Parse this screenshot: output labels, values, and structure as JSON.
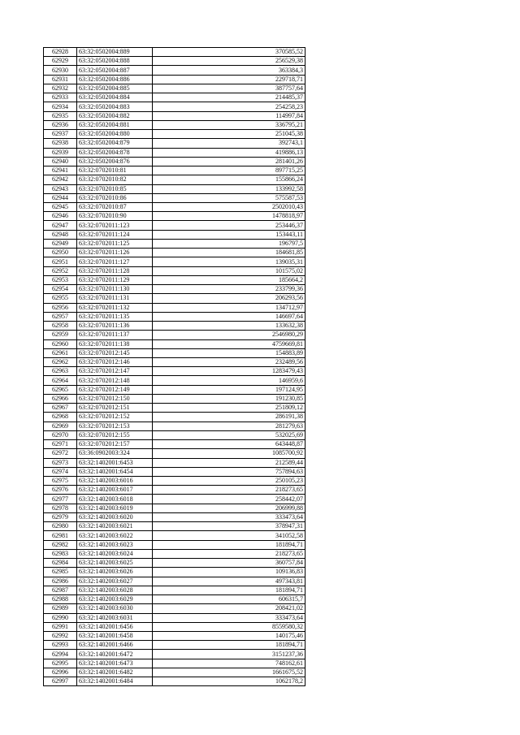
{
  "table": {
    "rows": [
      [
        "62928",
        "63:32:0502004:889",
        "370585,52"
      ],
      [
        "62929",
        "63:32:0502004:888",
        "256529,38"
      ],
      [
        "62930",
        "63:32:0502004:887",
        "363384,3"
      ],
      [
        "62931",
        "63:32:0502004:886",
        "229718,71"
      ],
      [
        "62932",
        "63:32:0502004:885",
        "387757,64"
      ],
      [
        "62933",
        "63:32:0502004:884",
        "214485,37"
      ],
      [
        "62934",
        "63:32:0502004:883",
        "254258,23"
      ],
      [
        "62935",
        "63:32:0502004:882",
        "114997,84"
      ],
      [
        "62936",
        "63:32:0502004:881",
        "336795,21"
      ],
      [
        "62937",
        "63:32:0502004:880",
        "251045,38"
      ],
      [
        "62938",
        "63:32:0502004:879",
        "392743,1"
      ],
      [
        "62939",
        "63:32:0502004:878",
        "419886,13"
      ],
      [
        "62940",
        "63:32:0502004:876",
        "281401,26"
      ],
      [
        "62941",
        "63:32:0702010:81",
        "897715,25"
      ],
      [
        "62942",
        "63:32:0702010:82",
        "155866,24"
      ],
      [
        "62943",
        "63:32:0702010:85",
        "133992,58"
      ],
      [
        "62944",
        "63:32:0702010:86",
        "575587,53"
      ],
      [
        "62945",
        "63:32:0702010:87",
        "2502010,43"
      ],
      [
        "62946",
        "63:32:0702010:90",
        "1478818,97"
      ],
      [
        "62947",
        "63:32:0702011:123",
        "253446,37"
      ],
      [
        "62948",
        "63:32:0702011:124",
        "153443,11"
      ],
      [
        "62949",
        "63:32:0702011:125",
        "196797,5"
      ],
      [
        "62950",
        "63:32:0702011:126",
        "184681,85"
      ],
      [
        "62951",
        "63:32:0702011:127",
        "139035,31"
      ],
      [
        "62952",
        "63:32:0702011:128",
        "101575,02"
      ],
      [
        "62953",
        "63:32:0702011:129",
        "185664,2"
      ],
      [
        "62954",
        "63:32:0702011:130",
        "233799,36"
      ],
      [
        "62955",
        "63:32:0702011:131",
        "206293,56"
      ],
      [
        "62956",
        "63:32:0702011:132",
        "134712,97"
      ],
      [
        "62957",
        "63:32:0702011:135",
        "146697,64"
      ],
      [
        "62958",
        "63:32:0702011:136",
        "133632,38"
      ],
      [
        "62959",
        "63:32:0702011:137",
        "2546980,29"
      ],
      [
        "62960",
        "63:32:0702011:138",
        "4759669,81"
      ],
      [
        "62961",
        "63:32:0702012:145",
        "154883,89"
      ],
      [
        "62962",
        "63:32:0702012:146",
        "232489,56"
      ],
      [
        "62963",
        "63:32:0702012:147",
        "1283479,43"
      ],
      [
        "62964",
        "63:32:0702012:148",
        "146959,6"
      ],
      [
        "62965",
        "63:32:0702012:149",
        "197124,95"
      ],
      [
        "62966",
        "63:32:0702012:150",
        "191230,85"
      ],
      [
        "62967",
        "63:32:0702012:151",
        "251809,12"
      ],
      [
        "62968",
        "63:32:0702012:152",
        "286191,38"
      ],
      [
        "62969",
        "63:32:0702012:153",
        "281279,63"
      ],
      [
        "62970",
        "63:32:0702012:155",
        "532025,69"
      ],
      [
        "62971",
        "63:32:0702012:157",
        "643448,87"
      ],
      [
        "62972",
        "63:36:0902003:324",
        "1085700,92"
      ],
      [
        "62973",
        "63:32:1402001:6453",
        "212589,44"
      ],
      [
        "62974",
        "63:32:1402001:6454",
        "757894,63"
      ],
      [
        "62975",
        "63:32:1402003:6016",
        "250105,23"
      ],
      [
        "62976",
        "63:32:1402003:6017",
        "218273,65"
      ],
      [
        "62977",
        "63:32:1402003:6018",
        "258442,07"
      ],
      [
        "62978",
        "63:32:1402003:6019",
        "206999,88"
      ],
      [
        "62979",
        "63:32:1402003:6020",
        "333473,64"
      ],
      [
        "62980",
        "63:32:1402003:6021",
        "378947,31"
      ],
      [
        "62981",
        "63:32:1402003:6022",
        "341052,58"
      ],
      [
        "62982",
        "63:32:1402003:6023",
        "181894,71"
      ],
      [
        "62983",
        "63:32:1402003:6024",
        "218273,65"
      ],
      [
        "62984",
        "63:32:1402003:6025",
        "360757,84"
      ],
      [
        "62985",
        "63:32:1402003:6026",
        "109136,83"
      ],
      [
        "62986",
        "63:32:1402003:6027",
        "497343,81"
      ],
      [
        "62987",
        "63:32:1402003:6028",
        "181894,71"
      ],
      [
        "62988",
        "63:32:1402003:6029",
        "606315,7"
      ],
      [
        "62989",
        "63:32:1402003:6030",
        "208421,02"
      ],
      [
        "62990",
        "63:32:1402003:6031",
        "333473,64"
      ],
      [
        "62991",
        "63:32:1402001:6456",
        "8559580,32"
      ],
      [
        "62992",
        "63:32:1402001:6458",
        "140175,46"
      ],
      [
        "62993",
        "63:32:1402001:6466",
        "181894,71"
      ],
      [
        "62994",
        "63:32:1402001:6472",
        "3151237,36"
      ],
      [
        "62995",
        "63:32:1402001:6473",
        "748162,61"
      ],
      [
        "62996",
        "63:32:1402001:6482",
        "1661675,52"
      ],
      [
        "62997",
        "63:32:1402001:6484",
        "1062178,2"
      ]
    ]
  }
}
